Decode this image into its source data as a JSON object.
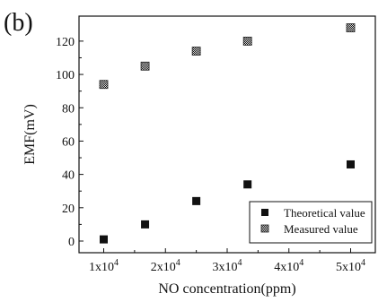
{
  "panel_label": "(b)",
  "chart_data": {
    "type": "scatter",
    "xlabel": "NO concentration(ppm)",
    "ylabel": "EMF(mV)",
    "xlim": [
      6000,
      54000
    ],
    "ylim": [
      -7,
      135
    ],
    "x_ticks": [
      {
        "value": 10000,
        "label": "1x10",
        "exp": "4"
      },
      {
        "value": 20000,
        "label": "2x10",
        "exp": "4"
      },
      {
        "value": 30000,
        "label": "3x10",
        "exp": "4"
      },
      {
        "value": 40000,
        "label": "4x10",
        "exp": "4"
      },
      {
        "value": 50000,
        "label": "5x10",
        "exp": "4"
      }
    ],
    "y_ticks": [
      0,
      20,
      40,
      60,
      80,
      100,
      120
    ],
    "grid": false,
    "legend_position": "bottom-right",
    "series": [
      {
        "name": "Theoretical value",
        "marker": "filled-square",
        "color": "#111111",
        "x": [
          10000,
          16700,
          25000,
          33300,
          50000
        ],
        "y": [
          1,
          10,
          24,
          34,
          46
        ]
      },
      {
        "name": "Measured value",
        "marker": "hatched-square",
        "color": "#333333",
        "x": [
          10000,
          16700,
          25000,
          33300,
          50000
        ],
        "y": [
          94,
          105,
          114,
          120,
          128
        ]
      }
    ]
  }
}
